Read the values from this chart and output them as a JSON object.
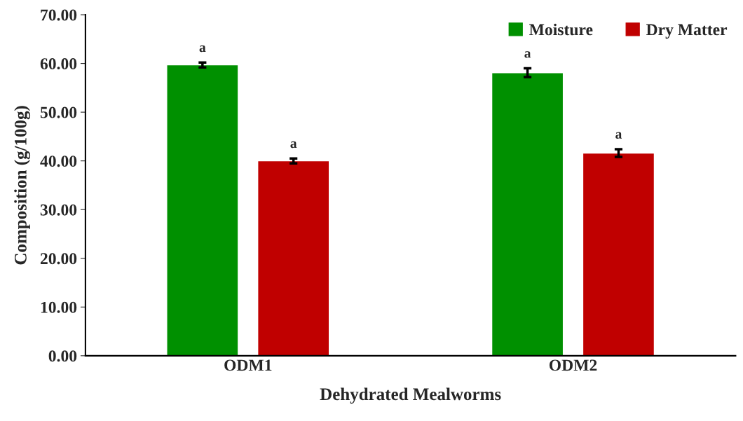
{
  "chart_data": {
    "type": "bar",
    "xlabel": "Dehydrated Mealworms",
    "ylabel": "Composition (g/100g)",
    "categories": [
      "ODM1",
      "ODM2"
    ],
    "series": [
      {
        "name": "Moisture",
        "color": "#009000",
        "values": [
          59.7,
          58.1
        ],
        "errors": [
          0.5,
          0.9
        ]
      },
      {
        "name": "Dry Matter",
        "color": "#c00000",
        "values": [
          40.0,
          41.6
        ],
        "errors": [
          0.5,
          0.8
        ]
      }
    ],
    "ylim": [
      0,
      70
    ],
    "yticks": [
      {
        "value": 0,
        "label": "0.00"
      },
      {
        "value": 10,
        "label": "10.00"
      },
      {
        "value": 20,
        "label": "20.00"
      },
      {
        "value": 30,
        "label": "30.00"
      },
      {
        "value": 40,
        "label": "40.00"
      },
      {
        "value": 50,
        "label": "50.00"
      },
      {
        "value": 60,
        "label": "60.00"
      },
      {
        "value": 70,
        "label": "70.00"
      }
    ],
    "annotations": [
      "a",
      "a",
      "a",
      "a"
    ],
    "legend": "top right",
    "grid": false
  }
}
